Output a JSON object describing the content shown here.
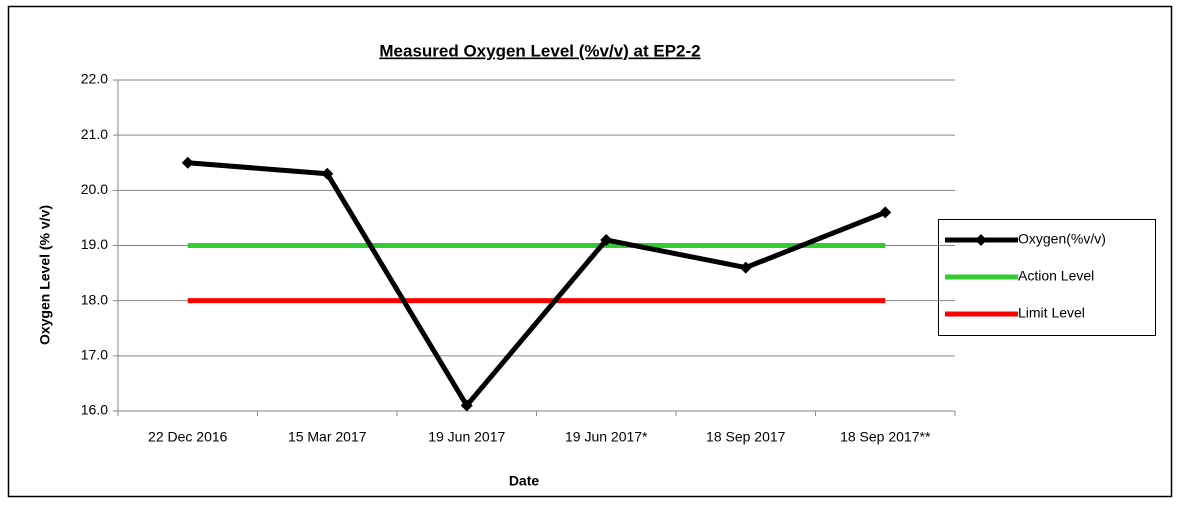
{
  "chart_data": {
    "type": "line",
    "title": "Measured Oxygen Level (%v/v) at EP2-2",
    "x_label": "Date",
    "y_label": "Oxygen Level (% v/v)",
    "categories": [
      "22 Dec 2016",
      "15 Mar 2017",
      "19 Jun 2017",
      "19 Jun 2017*",
      "18 Sep 2017",
      "18 Sep 2017**"
    ],
    "series": [
      {
        "name": "Oxygen(%v/v)",
        "color": "#000000",
        "marker": "diamond",
        "values": [
          20.5,
          20.3,
          16.1,
          19.1,
          18.6,
          19.6
        ]
      },
      {
        "name": "Action Level",
        "color": "#33cc33",
        "values": [
          19,
          19,
          19,
          19,
          19,
          19
        ]
      },
      {
        "name": "Limit Level",
        "color": "#ff0000",
        "values": [
          18,
          18,
          18,
          18,
          18,
          18
        ]
      }
    ],
    "ylim": [
      16,
      22
    ],
    "yticks": [
      {
        "value": 16,
        "label": "16.0"
      },
      {
        "value": 17,
        "label": "17.0"
      },
      {
        "value": 18,
        "label": "18.0"
      },
      {
        "value": 19,
        "label": "19.0"
      },
      {
        "value": 20,
        "label": "20.0"
      },
      {
        "value": 21,
        "label": "21.0"
      },
      {
        "value": 22,
        "label": "22.0"
      }
    ],
    "grid": true,
    "legend": "right"
  }
}
